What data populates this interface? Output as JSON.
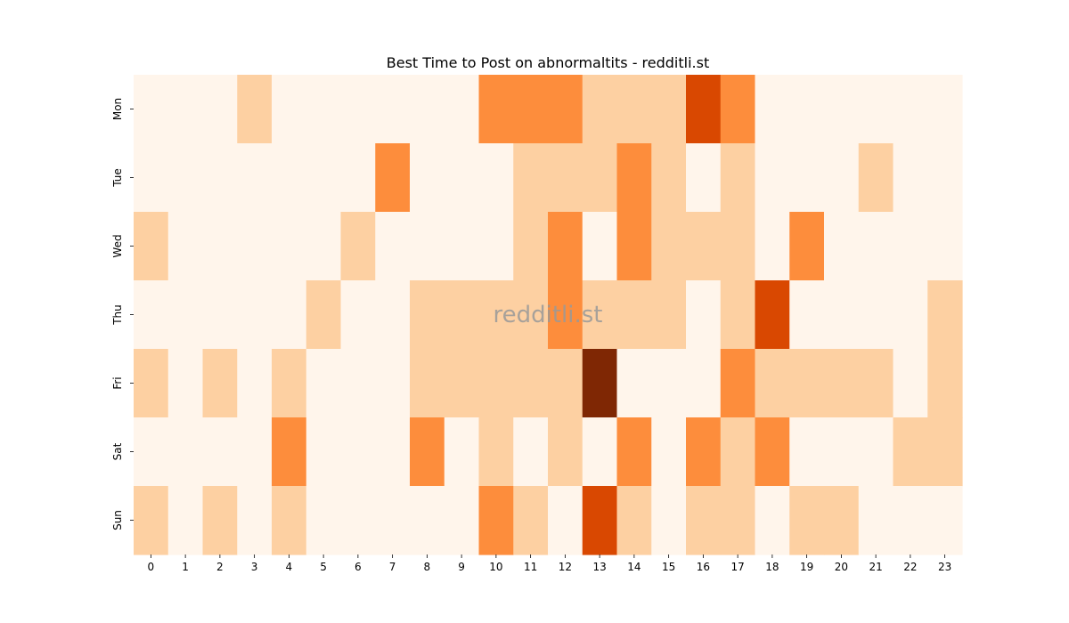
{
  "chart_data": {
    "type": "heatmap",
    "title": "Best Time to Post on abnormaltits - redditli.st",
    "watermark": "redditli.st",
    "xlabel": "",
    "ylabel": "",
    "x": [
      "0",
      "1",
      "2",
      "3",
      "4",
      "5",
      "6",
      "7",
      "8",
      "9",
      "10",
      "11",
      "12",
      "13",
      "14",
      "15",
      "16",
      "17",
      "18",
      "19",
      "20",
      "21",
      "22",
      "23"
    ],
    "y": [
      "Mon",
      "Tue",
      "Wed",
      "Thu",
      "Fri",
      "Sat",
      "Sun"
    ],
    "colormap": "Oranges",
    "palette": [
      "#fff5eb",
      "#fdd0a2",
      "#fd8d3c",
      "#d94801",
      "#7f2704"
    ],
    "values": [
      [
        0,
        0,
        0,
        1,
        0,
        0,
        0,
        0,
        0,
        0,
        2,
        2,
        2,
        1,
        1,
        1,
        3,
        2,
        0,
        0,
        0,
        0,
        0,
        0
      ],
      [
        0,
        0,
        0,
        0,
        0,
        0,
        0,
        2,
        0,
        0,
        0,
        1,
        1,
        1,
        2,
        1,
        0,
        1,
        0,
        0,
        0,
        1,
        0,
        0
      ],
      [
        1,
        0,
        0,
        0,
        0,
        0,
        1,
        0,
        0,
        0,
        0,
        1,
        2,
        0,
        2,
        1,
        1,
        1,
        0,
        2,
        0,
        0,
        0,
        0
      ],
      [
        0,
        0,
        0,
        0,
        0,
        1,
        0,
        0,
        1,
        1,
        1,
        1,
        2,
        1,
        1,
        1,
        0,
        1,
        3,
        0,
        0,
        0,
        0,
        1
      ],
      [
        1,
        0,
        1,
        0,
        1,
        0,
        0,
        0,
        1,
        1,
        1,
        1,
        1,
        4,
        0,
        0,
        0,
        2,
        1,
        1,
        1,
        1,
        0,
        1
      ],
      [
        0,
        0,
        0,
        0,
        2,
        0,
        0,
        0,
        2,
        0,
        1,
        0,
        1,
        0,
        2,
        0,
        2,
        1,
        2,
        0,
        0,
        0,
        1,
        1
      ],
      [
        1,
        0,
        1,
        0,
        1,
        0,
        0,
        0,
        0,
        0,
        2,
        1,
        0,
        3,
        1,
        0,
        1,
        1,
        0,
        1,
        1,
        0,
        0,
        0
      ]
    ]
  }
}
